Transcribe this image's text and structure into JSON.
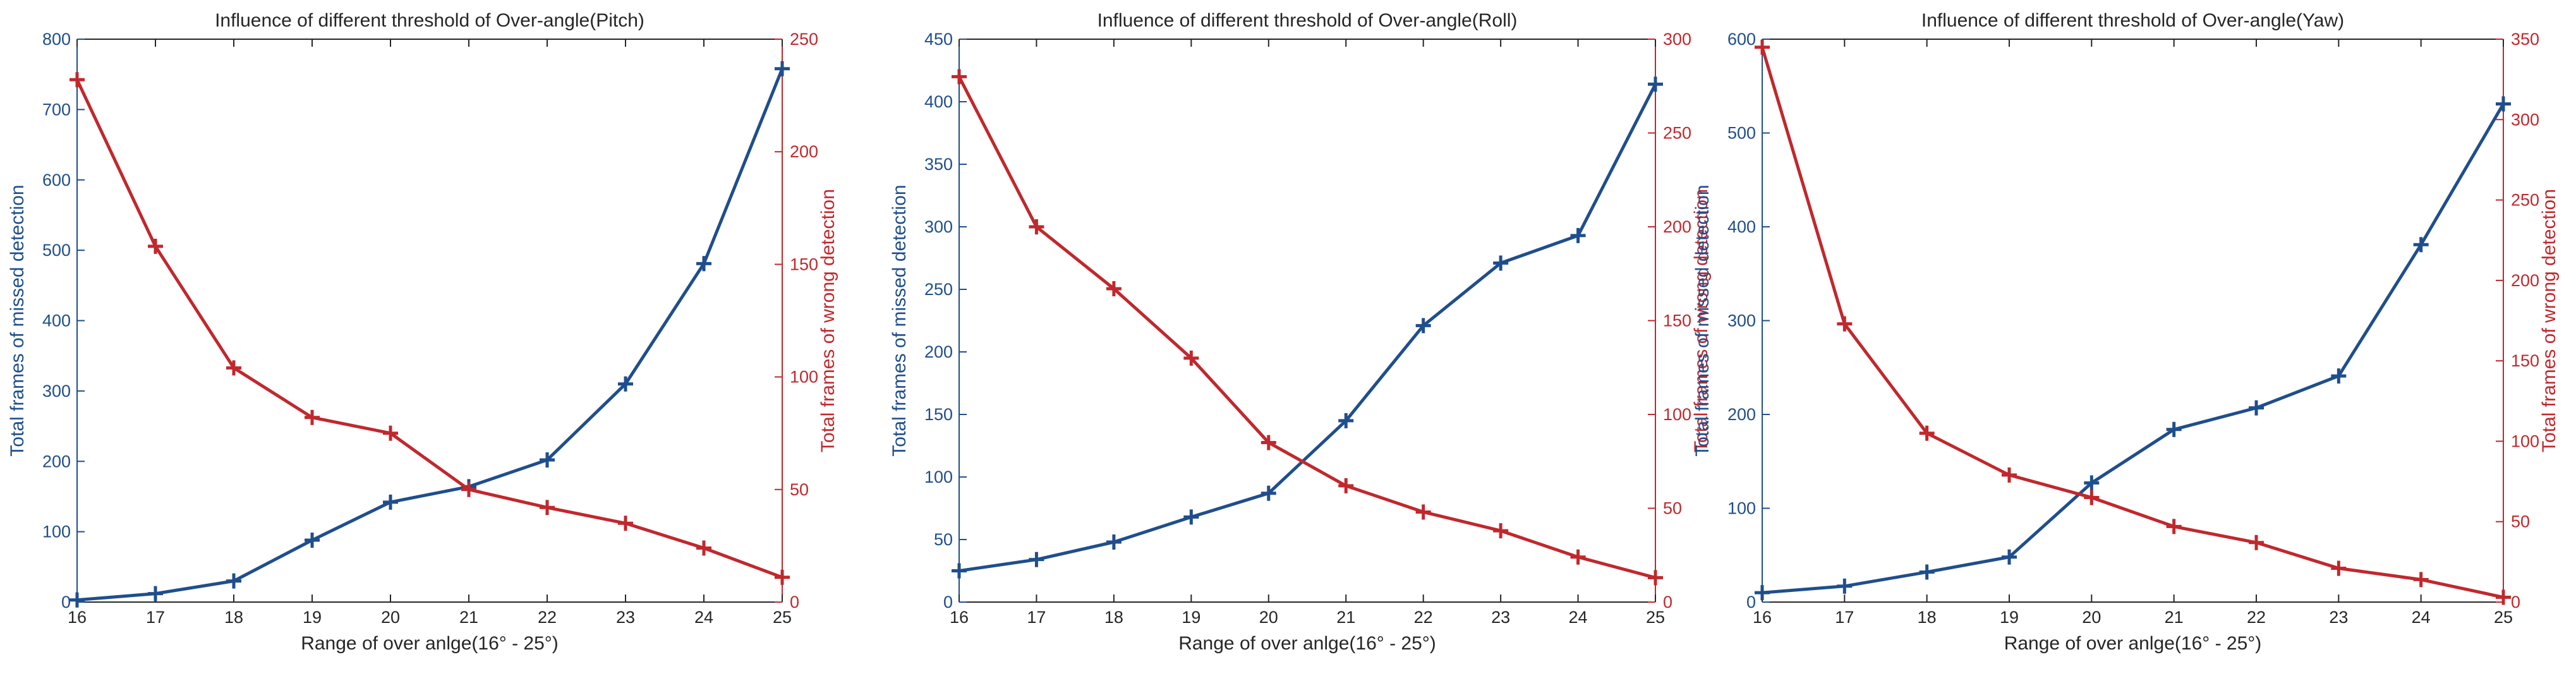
{
  "colors": {
    "left_axis": "#1F4E8C",
    "right_axis": "#C0282D",
    "frame": "#262626",
    "background": "#ffffff"
  },
  "chart_data": [
    {
      "type": "line",
      "title": "Influence of different threshold of Over-angle(Pitch)",
      "xlabel": "Range of over anlge(16° - 25°)",
      "ylabel_left": "Total frames of missed detection",
      "ylabel_right": "Total frames of wrong detection",
      "x": [
        16,
        17,
        18,
        19,
        20,
        21,
        22,
        23,
        24,
        25
      ],
      "x_ticks": [
        "16",
        "17",
        "18",
        "19",
        "20",
        "21",
        "22",
        "23",
        "24",
        "25"
      ],
      "xlim": [
        16,
        25
      ],
      "ylim_left": [
        0,
        800
      ],
      "ylim_right": [
        0,
        250
      ],
      "yticks_left": [
        0,
        100,
        200,
        300,
        400,
        500,
        600,
        700,
        800
      ],
      "yticks_right": [
        0,
        50,
        100,
        150,
        200,
        250
      ],
      "series": [
        {
          "name": "Total frames of missed detection",
          "axis": "left",
          "color": "#1F4E8C",
          "values": [
            3,
            12,
            30,
            88,
            142,
            164,
            202,
            310,
            481,
            758
          ]
        },
        {
          "name": "Total frames of wrong detection",
          "axis": "right",
          "color": "#C0282D",
          "values": [
            232,
            158,
            104,
            82,
            75,
            50,
            42,
            35,
            24,
            11
          ]
        }
      ]
    },
    {
      "type": "line",
      "title": "Influence of different threshold of Over-angle(Roll)",
      "xlabel": "Range of over anlge(16° - 25°)",
      "ylabel_left": "Total frames of missed detection",
      "ylabel_right": "Total frames of wrong detection",
      "x": [
        16,
        17,
        18,
        19,
        20,
        21,
        22,
        23,
        24,
        25
      ],
      "x_ticks": [
        "16",
        "17",
        "18",
        "19",
        "20",
        "21",
        "22",
        "23",
        "24",
        "25"
      ],
      "xlim": [
        16,
        25
      ],
      "ylim_left": [
        0,
        450
      ],
      "ylim_right": [
        0,
        300
      ],
      "yticks_left": [
        0,
        50,
        100,
        150,
        200,
        250,
        300,
        350,
        400,
        450
      ],
      "yticks_right": [
        0,
        50,
        100,
        150,
        200,
        250,
        300
      ],
      "series": [
        {
          "name": "Total frames of missed detection",
          "axis": "left",
          "color": "#1F4E8C",
          "values": [
            25,
            34,
            48,
            68,
            87,
            145,
            221,
            271,
            293,
            414
          ]
        },
        {
          "name": "Total frames of wrong detection",
          "axis": "right",
          "color": "#C0282D",
          "values": [
            280,
            200,
            167,
            130,
            85,
            62,
            48,
            38,
            24,
            13
          ]
        }
      ]
    },
    {
      "type": "line",
      "title": "Influence of different threshold of Over-angle(Yaw)",
      "xlabel": "Range of over anlge(16° - 25°)",
      "ylabel_left": "Total frames of missed detection",
      "ylabel_right": "Total frames of wrong detection",
      "x": [
        16,
        17,
        18,
        19,
        20,
        21,
        22,
        23,
        24,
        25
      ],
      "x_ticks": [
        "16",
        "17",
        "18",
        "19",
        "20",
        "21",
        "22",
        "23",
        "24",
        "25"
      ],
      "xlim": [
        16,
        25
      ],
      "ylim_left": [
        0,
        600
      ],
      "ylim_right": [
        0,
        350
      ],
      "yticks_left": [
        0,
        100,
        200,
        300,
        400,
        500,
        600
      ],
      "yticks_right": [
        0,
        50,
        100,
        150,
        200,
        250,
        300,
        350
      ],
      "series": [
        {
          "name": "Total frames of missed detection",
          "axis": "left",
          "color": "#1F4E8C",
          "values": [
            10,
            17,
            32,
            48,
            127,
            184,
            207,
            241,
            381,
            531
          ]
        },
        {
          "name": "Total frames of wrong detection",
          "axis": "right",
          "color": "#C0282D",
          "values": [
            345,
            173,
            105,
            79,
            65,
            47,
            37,
            21,
            14,
            3
          ]
        }
      ]
    }
  ]
}
